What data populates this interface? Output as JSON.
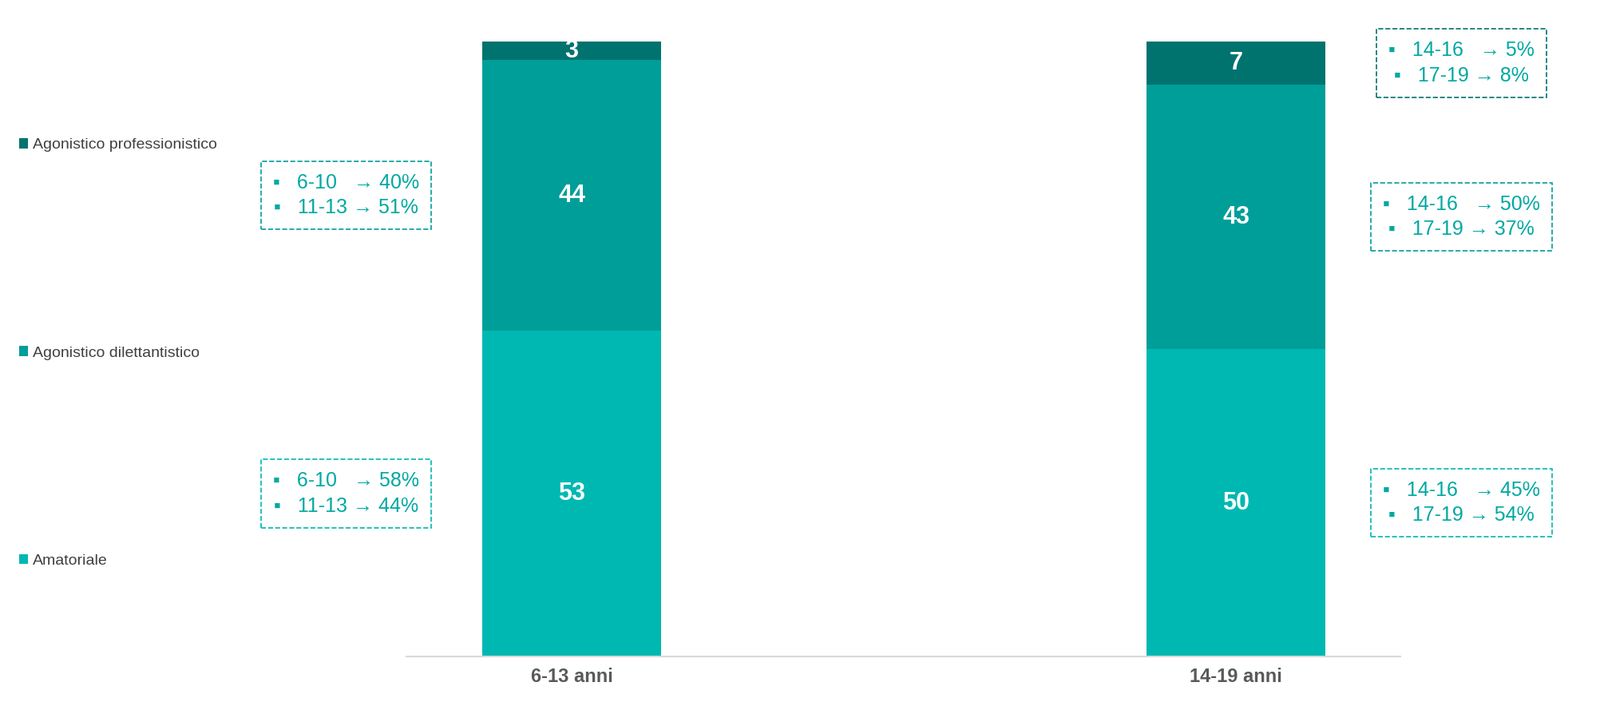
{
  "chart_data": {
    "type": "bar",
    "stacked": true,
    "data_labels": true,
    "tick_labels": "x",
    "legend": "left",
    "categories": [
      "6-13 anni",
      "14-19 anni"
    ],
    "series": [
      {
        "name": "Amatoriale",
        "color": "#00B8B2",
        "values": [
          53,
          50
        ]
      },
      {
        "name": "Agonistico dilettantistico",
        "color": "#009E99",
        "values": [
          44,
          43
        ]
      },
      {
        "name": "Agonistico professionistico",
        "color": "#00736F",
        "values": [
          3,
          7
        ]
      }
    ],
    "annotations": [
      {
        "category": "6-13 anni",
        "series": "Agonistico dilettantistico",
        "lines": [
          "▪   6-10   → 40%",
          "▪   11-13 → 51%"
        ]
      },
      {
        "category": "6-13 anni",
        "series": "Amatoriale",
        "lines": [
          "▪   6-10   → 58%",
          "▪   11-13 → 44%"
        ]
      },
      {
        "category": "14-19 anni",
        "series": "Agonistico professionistico",
        "lines": [
          "▪   14-16   → 5%",
          "▪   17-19 → 8%"
        ]
      },
      {
        "category": "14-19 anni",
        "series": "Agonistico dilettantistico",
        "lines": [
          "▪   14-16   → 50%",
          "▪   17-19 → 37%"
        ]
      },
      {
        "category": "14-19 anni",
        "series": "Amatoriale",
        "lines": [
          "▪   14-16   → 45%",
          "▪   17-19 → 54%"
        ]
      }
    ]
  }
}
